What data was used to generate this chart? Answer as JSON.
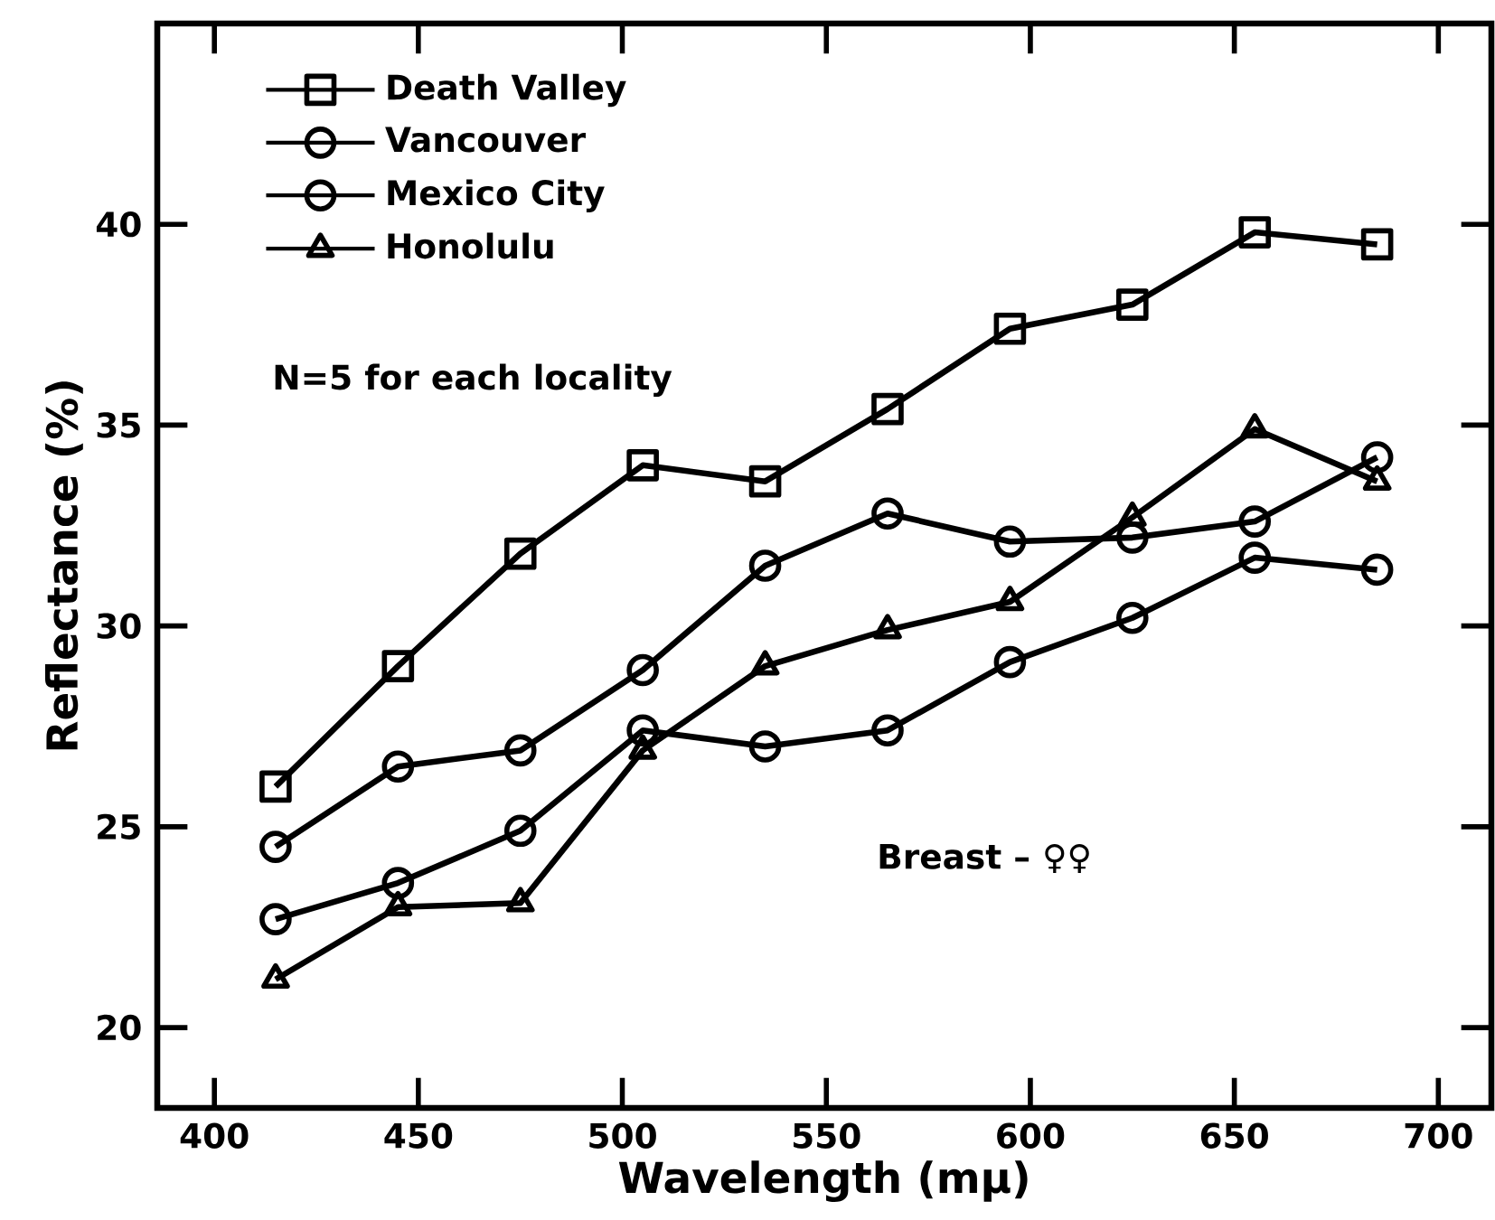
{
  "chart_data": {
    "type": "line",
    "xlabel": "Wavelength (mμ)",
    "ylabel": "Reflectance (%)",
    "x": [
      415,
      445,
      475,
      505,
      535,
      565,
      595,
      625,
      655,
      685
    ],
    "series": [
      {
        "name": "Death Valley",
        "color": "#000000",
        "marker": "square",
        "values": [
          26.0,
          29.0,
          31.8,
          34.0,
          33.6,
          35.4,
          37.4,
          38.0,
          39.8,
          39.5
        ]
      },
      {
        "name": "Vancouver",
        "color": "#000000",
        "marker": "circle",
        "values": [
          24.5,
          26.5,
          26.9,
          28.9,
          31.5,
          32.8,
          32.1,
          32.2,
          32.6,
          34.2
        ]
      },
      {
        "name": "Mexico City",
        "color": "#000000",
        "marker": "circle",
        "values": [
          22.7,
          23.6,
          24.9,
          27.4,
          27.0,
          27.4,
          29.1,
          30.2,
          31.7,
          31.4
        ]
      },
      {
        "name": "Honolulu",
        "color": "#000000",
        "marker": "triangle",
        "values": [
          21.2,
          23.0,
          23.1,
          26.9,
          29.0,
          29.9,
          30.6,
          32.7,
          34.9,
          33.6
        ]
      }
    ],
    "xlim": [
      386,
      713
    ],
    "ylim": [
      18,
      45
    ],
    "xticks": [
      400,
      450,
      500,
      550,
      600,
      650,
      700
    ],
    "yticks": [
      20,
      25,
      30,
      35,
      40
    ],
    "grid": false,
    "legend": "top left",
    "line_style": "solid",
    "annotations": [
      "N=5 for each locality",
      "Breast – ♀♀"
    ]
  }
}
